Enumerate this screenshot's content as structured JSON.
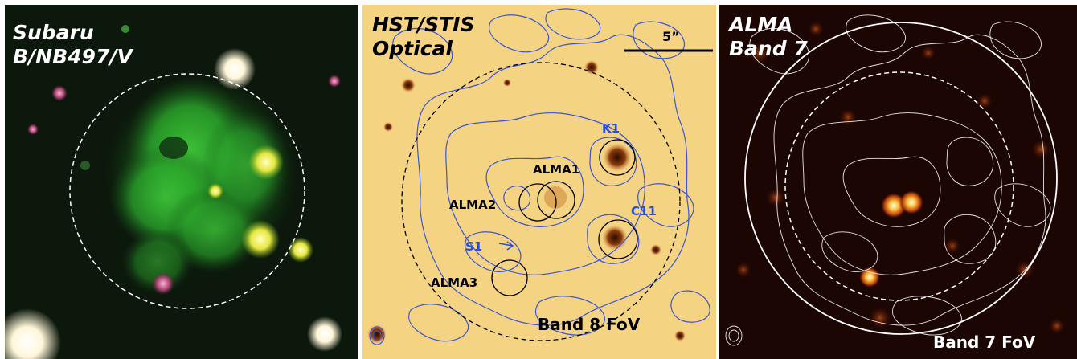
{
  "panels": {
    "subaru": {
      "title_line1": "Subaru",
      "title_line2": "B/NB497/V"
    },
    "hst": {
      "title_line1": "HST/STIS",
      "title_line2": "Optical",
      "scale_label": "5”",
      "fov_label": "Band 8 FoV",
      "sources": {
        "k1": "K1",
        "alma1": "ALMA1",
        "alma2": "ALMA2",
        "c11": "C11",
        "s1": "S1",
        "alma3": "ALMA3"
      }
    },
    "alma": {
      "title_line1": "ALMA",
      "title_line2": "Band 7",
      "fov_label": "Band 7 FoV"
    }
  },
  "colors": {
    "contour_blue": "#3b55d6",
    "source_blue": "#2a4ed8",
    "contour_white": "#ffffff"
  }
}
